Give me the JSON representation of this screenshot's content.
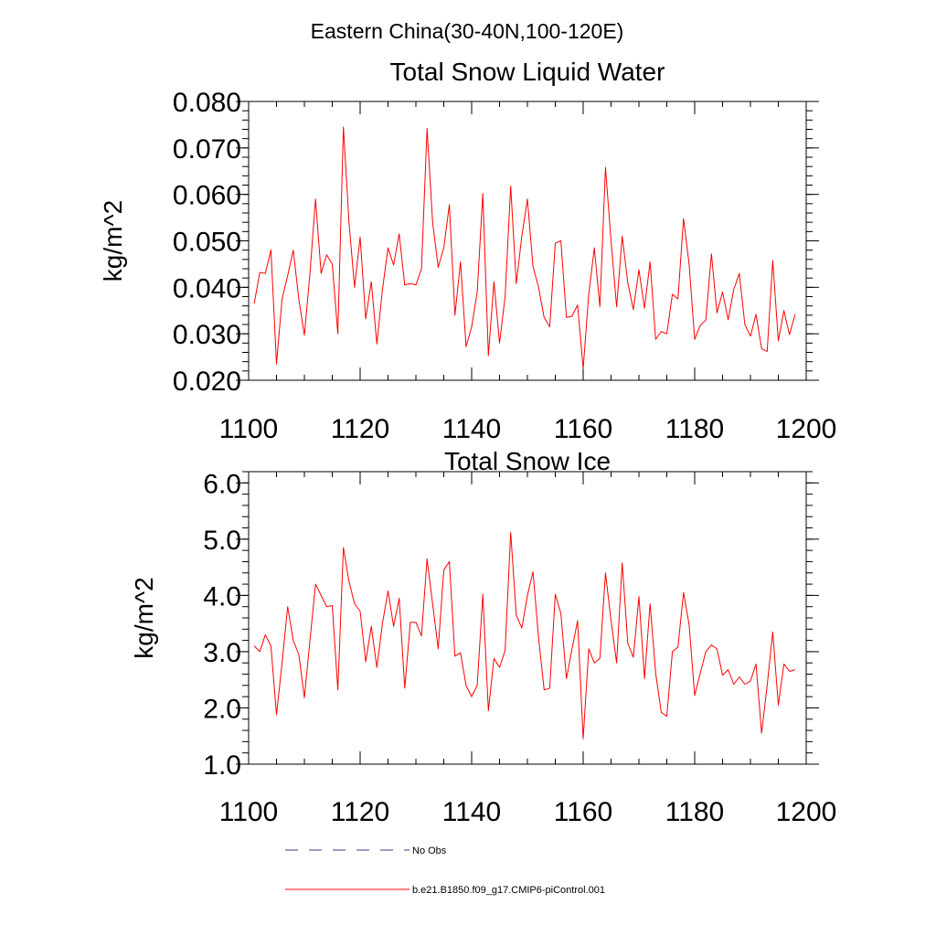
{
  "figure": {
    "suptitle": "Eastern China(30-40N,100-120E)"
  },
  "chart_data": [
    {
      "type": "line",
      "title": "Total Snow Liquid Water",
      "xlabel": "",
      "ylabel": "kg/m^2",
      "xlim": [
        1100,
        1200
      ],
      "ylim": [
        0.02,
        0.08
      ],
      "x_ticks": [
        1100,
        1120,
        1140,
        1160,
        1180,
        1200
      ],
      "x_tick_labels": [
        "1100",
        "1120",
        "1140",
        "1160",
        "1180",
        "1200"
      ],
      "y_ticks": [
        0.02,
        0.03,
        0.04,
        0.05,
        0.06,
        0.07,
        0.08
      ],
      "y_tick_labels": [
        "0.020",
        "0.030",
        "0.040",
        "0.050",
        "0.060",
        "0.070",
        "0.080"
      ],
      "x_minor_step": 5,
      "y_minor_step": 0.002,
      "grid": false,
      "x_start": 1101,
      "series": [
        {
          "name": "b.e21.B1850.f09_g17.CMIP6-piControl.001",
          "color": "#ff0000",
          "values": [
            0.0365,
            0.0432,
            0.043,
            0.048,
            0.0235,
            0.0375,
            0.0425,
            0.048,
            0.0375,
            0.0297,
            0.043,
            0.059,
            0.043,
            0.047,
            0.045,
            0.03,
            0.0745,
            0.054,
            0.04,
            0.0508,
            0.0332,
            0.0412,
            0.0278,
            0.0395,
            0.0485,
            0.0448,
            0.0515,
            0.0405,
            0.0408,
            0.0405,
            0.044,
            0.0742,
            0.054,
            0.0443,
            0.0485,
            0.0578,
            0.034,
            0.0455,
            0.0272,
            0.0315,
            0.039,
            0.0602,
            0.0253,
            0.0412,
            0.028,
            0.038,
            0.0618,
            0.0408,
            0.051,
            0.059,
            0.0445,
            0.04,
            0.0335,
            0.0315,
            0.0495,
            0.05,
            0.0335,
            0.0338,
            0.0362,
            0.0225,
            0.0385,
            0.0485,
            0.0358,
            0.0658,
            0.05,
            0.0358,
            0.051,
            0.041,
            0.0352,
            0.0438,
            0.0355,
            0.0455,
            0.0288,
            0.0305,
            0.03,
            0.0385,
            0.0375,
            0.0548,
            0.045,
            0.0288,
            0.0318,
            0.033,
            0.0472,
            0.0345,
            0.039,
            0.033,
            0.0395,
            0.043,
            0.032,
            0.0295,
            0.0342,
            0.0268,
            0.0262,
            0.0458,
            0.0285,
            0.035,
            0.0298,
            0.0342
          ]
        }
      ]
    },
    {
      "type": "line",
      "title": "Total Snow Ice",
      "xlabel": "",
      "ylabel": "kg/m^2",
      "xlim": [
        1100,
        1200
      ],
      "ylim": [
        1.0,
        6.2
      ],
      "x_ticks": [
        1100,
        1120,
        1140,
        1160,
        1180,
        1200
      ],
      "x_tick_labels": [
        "1100",
        "1120",
        "1140",
        "1160",
        "1180",
        "1200"
      ],
      "y_ticks": [
        1.0,
        2.0,
        3.0,
        4.0,
        5.0,
        6.0
      ],
      "y_tick_labels": [
        "1.0",
        "2.0",
        "3.0",
        "4.0",
        "5.0",
        "6.0"
      ],
      "x_minor_step": 5,
      "y_minor_step": 0.2,
      "grid": false,
      "x_start": 1101,
      "series": [
        {
          "name": "b.e21.B1850.f09_g17.CMIP6-piControl.001",
          "color": "#ff0000",
          "values": [
            3.1,
            3.0,
            3.3,
            3.1,
            1.88,
            2.8,
            3.8,
            3.2,
            2.95,
            2.18,
            3.2,
            4.2,
            4.0,
            3.8,
            3.82,
            2.32,
            4.85,
            4.25,
            3.85,
            3.72,
            2.82,
            3.45,
            2.72,
            3.5,
            4.08,
            3.45,
            3.95,
            2.35,
            3.52,
            3.52,
            3.28,
            4.65,
            3.85,
            3.05,
            4.45,
            4.6,
            2.92,
            2.98,
            2.4,
            2.2,
            2.4,
            4.02,
            1.95,
            2.88,
            2.72,
            3.02,
            5.12,
            3.65,
            3.42,
            4.0,
            4.42,
            3.25,
            2.32,
            2.35,
            4.02,
            3.68,
            2.52,
            3.05,
            3.55,
            1.45,
            3.05,
            2.8,
            2.88,
            4.4,
            3.55,
            2.8,
            4.58,
            3.15,
            2.9,
            3.98,
            2.52,
            3.85,
            2.62,
            1.92,
            1.85,
            3.0,
            3.08,
            4.05,
            3.48,
            2.22,
            2.62,
            3.0,
            3.12,
            3.05,
            2.58,
            2.68,
            2.42,
            2.55,
            2.42,
            2.48,
            2.78,
            1.55,
            2.4,
            3.35,
            2.05,
            2.78,
            2.65,
            2.68
          ]
        }
      ]
    }
  ],
  "legend": {
    "items": [
      {
        "label": "No Obs",
        "color": "#3b3b8f",
        "dash": "dashed"
      },
      {
        "label": "b.e21.B1850.f09_g17.CMIP6-piControl.001",
        "color": "#ff0000",
        "dash": "solid"
      }
    ]
  }
}
